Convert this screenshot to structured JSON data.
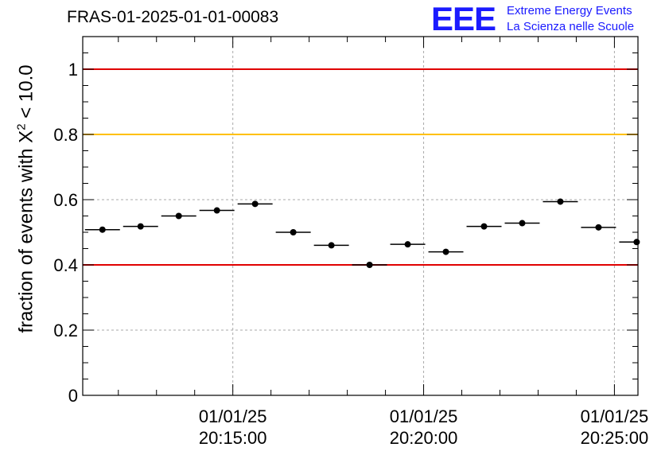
{
  "title": "FRAS-01-2025-01-01-00083",
  "logo": {
    "mark": "EEE",
    "line1": "Extreme Energy Events",
    "line2": "La Scienza nelle Scuole",
    "color": "#1a1aff"
  },
  "chart_data": {
    "type": "scatter",
    "ylabel_prefix": "fraction of events with X",
    "ylabel_sup": "2",
    "ylabel_suffix": " < 10.0",
    "ylim": [
      0,
      1.1
    ],
    "yticks": [
      0,
      0.2,
      0.4,
      0.6,
      0.8,
      1
    ],
    "ytick_labels": [
      "0",
      "0.2",
      "0.4",
      "0.6",
      "0.8",
      "1"
    ],
    "xlim": [
      "20:11:04",
      "20:25:37"
    ],
    "xticks": [
      {
        "time": "20:15:00",
        "date": "01/01/25",
        "clock": "20:15:00"
      },
      {
        "time": "20:20:00",
        "date": "01/01/25",
        "clock": "20:20:00"
      },
      {
        "time": "20:25:00",
        "date": "01/01/25",
        "clock": "20:25:00"
      }
    ],
    "minor_tick_interval_seconds": 60,
    "grid": true,
    "bin_width_seconds": 60,
    "points": [
      {
        "x": "20:11:35",
        "y": 0.508
      },
      {
        "x": "20:12:35",
        "y": 0.518
      },
      {
        "x": "20:13:35",
        "y": 0.55
      },
      {
        "x": "20:14:35",
        "y": 0.567
      },
      {
        "x": "20:15:35",
        "y": 0.587
      },
      {
        "x": "20:16:35",
        "y": 0.5
      },
      {
        "x": "20:17:35",
        "y": 0.46
      },
      {
        "x": "20:18:35",
        "y": 0.4
      },
      {
        "x": "20:19:35",
        "y": 0.463
      },
      {
        "x": "20:20:35",
        "y": 0.44
      },
      {
        "x": "20:21:35",
        "y": 0.518
      },
      {
        "x": "20:22:35",
        "y": 0.528
      },
      {
        "x": "20:23:35",
        "y": 0.594
      },
      {
        "x": "20:24:35",
        "y": 0.515
      },
      {
        "x": "20:25:35",
        "y": 0.47
      }
    ],
    "reference_lines": [
      {
        "y": 1.0,
        "color": "#e00000"
      },
      {
        "y": 0.8,
        "color": "#ffc000"
      },
      {
        "y": 0.4,
        "color": "#e00000"
      }
    ]
  }
}
